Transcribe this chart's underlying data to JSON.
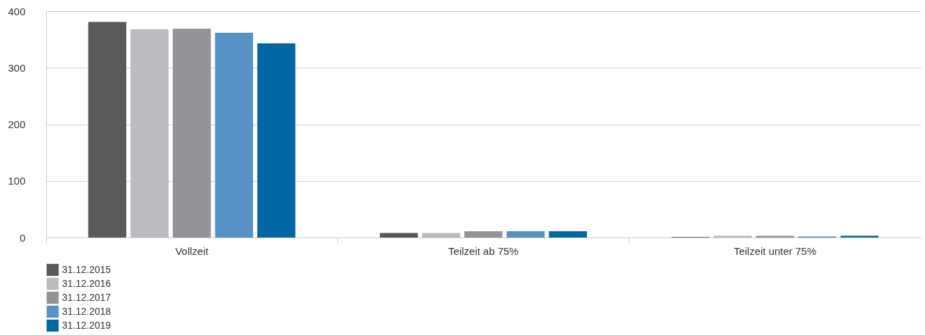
{
  "chart_data": {
    "type": "bar",
    "categories": [
      "Vollzeit",
      "Teilzeit ab 75%",
      "Teilzeit unter 75%"
    ],
    "series": [
      {
        "name": "31.12.2015",
        "color": "#58595b",
        "values": [
          381,
          8,
          1
        ]
      },
      {
        "name": "31.12.2016",
        "color": "#bbbcbf",
        "values": [
          368,
          8,
          3
        ]
      },
      {
        "name": "31.12.2017",
        "color": "#939497",
        "values": [
          369,
          11,
          3
        ]
      },
      {
        "name": "31.12.2018",
        "color": "#5693c4",
        "values": [
          362,
          11,
          2
        ]
      },
      {
        "name": "31.12.2019",
        "color": "#0066a4",
        "values": [
          343,
          11,
          3
        ]
      }
    ],
    "ylim": [
      0,
      400
    ],
    "yticks": [
      0,
      100,
      200,
      300,
      400
    ],
    "grid": "y",
    "legend": "bottom left"
  }
}
